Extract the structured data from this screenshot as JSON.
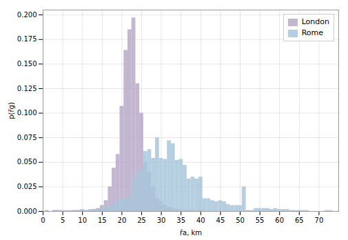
{
  "chart_data": {
    "type": "bar",
    "xlabel": "r̄a, km",
    "ylabel": "p(r̄g)",
    "xlim": [
      0,
      75
    ],
    "ylim": [
      0,
      0.205
    ],
    "xticks": [
      0,
      5,
      10,
      15,
      20,
      25,
      30,
      35,
      40,
      45,
      50,
      55,
      60,
      65,
      70
    ],
    "yticks": [
      {
        "value": 0,
        "label": "0.000"
      },
      0.025,
      {
        "value": 0.05,
        "label": "0.050"
      },
      0.075,
      {
        "value": 0.1,
        "label": "0.100"
      },
      0.125,
      {
        "value": 0.15,
        "label": "0.150"
      },
      0.175,
      {
        "value": 0.2,
        "label": "0.200"
      }
    ],
    "grid": true,
    "legend": "upper right",
    "series": [
      {
        "name": "London",
        "color": "#b8a9c9",
        "x": [
          1,
          2,
          3,
          4,
          5,
          6,
          7,
          8,
          9,
          10,
          11,
          12,
          13,
          14,
          15,
          16,
          17,
          18,
          19,
          20,
          21,
          22,
          23,
          24,
          25,
          26,
          27,
          28,
          29,
          30,
          31,
          32,
          33,
          34,
          35,
          36,
          37,
          38,
          39,
          40
        ],
        "values": [
          0.001,
          0.0,
          0.001,
          0.001,
          0.0,
          0.0,
          0.0,
          0.001,
          0.001,
          0.001,
          0.001,
          0.001,
          0.002,
          0.003,
          0.006,
          0.011,
          0.025,
          0.044,
          0.058,
          0.107,
          0.164,
          0.185,
          0.197,
          0.13,
          0.1,
          0.05,
          0.04,
          0.025,
          0.013,
          0.01,
          0.006,
          0.004,
          0.003,
          0.002,
          0.001,
          0.001,
          0.001,
          0.001,
          0.0,
          0.001
        ]
      },
      {
        "name": "Rome",
        "color": "#a8c5da",
        "x": [
          3,
          4,
          5,
          6,
          7,
          8,
          9,
          10,
          11,
          12,
          13,
          14,
          15,
          16,
          17,
          18,
          19,
          20,
          21,
          22,
          23,
          24,
          25,
          26,
          27,
          28,
          29,
          30,
          31,
          32,
          33,
          34,
          35,
          36,
          37,
          38,
          39,
          40,
          41,
          42,
          43,
          44,
          45,
          46,
          47,
          48,
          49,
          50,
          51,
          52,
          53,
          54,
          55,
          56,
          57,
          58,
          59,
          60,
          61,
          62,
          63,
          64,
          65,
          66,
          67,
          72,
          73
        ],
        "values": [
          0.001,
          0.001,
          0.001,
          0.001,
          0.001,
          0.001,
          0.001,
          0.002,
          0.001,
          0.002,
          0.002,
          0.002,
          0.003,
          0.004,
          0.006,
          0.008,
          0.01,
          0.013,
          0.013,
          0.015,
          0.032,
          0.04,
          0.042,
          0.061,
          0.063,
          0.054,
          0.075,
          0.054,
          0.053,
          0.072,
          0.069,
          0.052,
          0.053,
          0.047,
          0.033,
          0.035,
          0.033,
          0.035,
          0.013,
          0.013,
          0.011,
          0.01,
          0.011,
          0.01,
          0.007,
          0.006,
          0.006,
          0.006,
          0.025,
          0.001,
          0.001,
          0.003,
          0.003,
          0.003,
          0.003,
          0.002,
          0.003,
          0.002,
          0.002,
          0.002,
          0.001,
          0.001,
          0.001,
          0.001,
          0.001,
          0.001,
          0.001
        ]
      }
    ]
  }
}
